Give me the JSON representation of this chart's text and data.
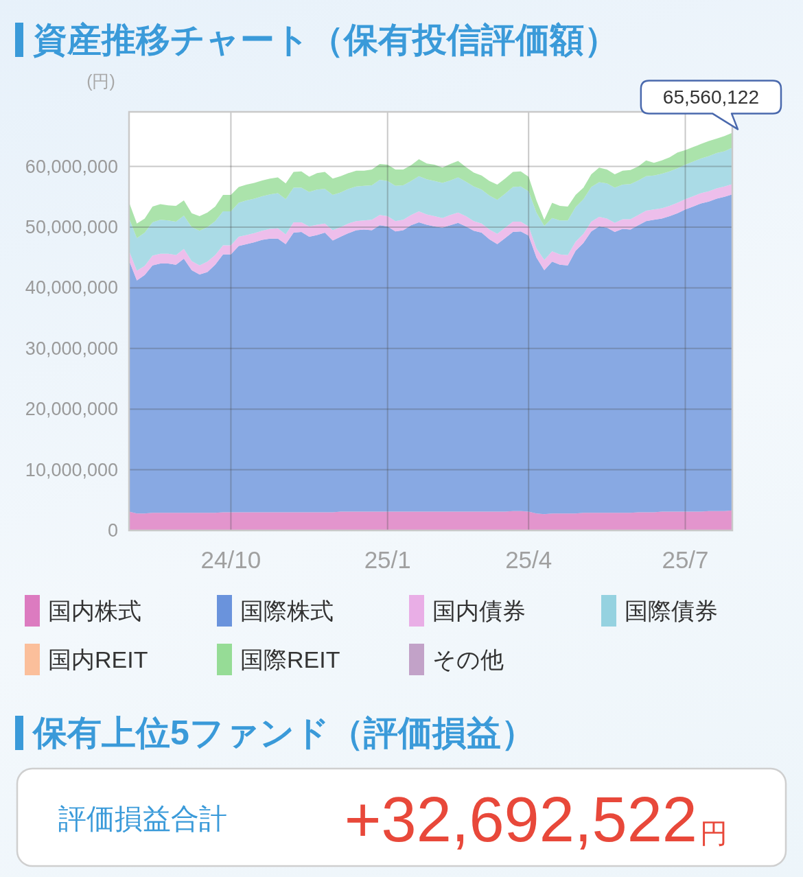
{
  "chart_data": [
    {
      "type": "area",
      "title": "資産推移チャート（保有投信評価額）",
      "ylabel": "(円)",
      "stacked": true,
      "categories": [
        null,
        null,
        null,
        null,
        null,
        null,
        null,
        null,
        null,
        null,
        null,
        null,
        null,
        "24/10",
        null,
        null,
        null,
        null,
        null,
        null,
        null,
        null,
        null,
        null,
        null,
        null,
        null,
        null,
        null,
        null,
        null,
        null,
        null,
        "25/1",
        null,
        null,
        null,
        null,
        null,
        null,
        null,
        null,
        null,
        null,
        null,
        null,
        null,
        null,
        null,
        null,
        null,
        "25/4",
        null,
        null,
        null,
        null,
        null,
        null,
        null,
        null,
        null,
        null,
        null,
        null,
        null,
        null,
        null,
        null,
        null,
        null,
        null,
        "25/7",
        null,
        null,
        null,
        null,
        null,
        null
      ],
      "series": [
        {
          "name": "国内株式",
          "color": "#dc7bc0",
          "values": [
            3100000,
            2800000,
            2800000,
            2900000,
            2900000,
            2900000,
            2900000,
            2900000,
            2900000,
            2900000,
            2900000,
            2900000,
            3000000,
            3000000,
            3000000,
            3000000,
            3000000,
            3000000,
            3000000,
            3000000,
            3000000,
            3000000,
            3000000,
            3000000,
            3000000,
            3000000,
            3000000,
            3100000,
            3100000,
            3100000,
            3100000,
            3100000,
            3100000,
            3100000,
            3100000,
            3100000,
            3100000,
            3100000,
            3100000,
            3100000,
            3100000,
            3100000,
            3100000,
            3100000,
            3100000,
            3100000,
            3100000,
            3100000,
            3100000,
            3200000,
            3200000,
            3100000,
            2800000,
            2700000,
            2800000,
            2800000,
            2800000,
            2800000,
            2900000,
            2900000,
            2900000,
            2900000,
            2900000,
            2900000,
            2900000,
            3000000,
            3000000,
            3000000,
            3100000,
            3100000,
            3100000,
            3100000,
            3100000,
            3100000,
            3200000,
            3200000,
            3200000,
            3300000
          ]
        },
        {
          "name": "国際株式",
          "color": "#6a93dc",
          "values": [
            41400000,
            38400000,
            39300000,
            40800000,
            41100000,
            41100000,
            40900000,
            41900000,
            40000000,
            39300000,
            39700000,
            40900000,
            42500000,
            42500000,
            43900000,
            44200000,
            44500000,
            44900000,
            45100000,
            45100000,
            44200000,
            46100000,
            46200000,
            45400000,
            45700000,
            46100000,
            44800000,
            45300000,
            45900000,
            46400000,
            46500000,
            46400000,
            47200000,
            47000000,
            46200000,
            46400000,
            47200000,
            47700000,
            47300000,
            47000000,
            46800000,
            47200000,
            47600000,
            47000000,
            46300000,
            46000000,
            44900000,
            44100000,
            45100000,
            46000000,
            46100000,
            45500000,
            42200000,
            40200000,
            41500000,
            41000000,
            40900000,
            43300000,
            44500000,
            46400000,
            47200000,
            47000000,
            46300000,
            46800000,
            46700000,
            47300000,
            48000000,
            48200000,
            48300000,
            48700000,
            49200000,
            49800000,
            50300000,
            50800000,
            51000000,
            51500000,
            51800000,
            52100000
          ]
        },
        {
          "name": "国内債券",
          "color": "#e9aee6",
          "values": [
            1600000,
            1600000,
            1500000,
            1600000,
            1600000,
            1600000,
            1600000,
            1600000,
            1500000,
            1500000,
            1700000,
            1600000,
            1500000,
            1500000,
            1500000,
            1500000,
            1500000,
            1500000,
            1600000,
            1700000,
            1600000,
            1700000,
            1600000,
            1700000,
            1700000,
            1500000,
            1700000,
            1600000,
            1600000,
            1500000,
            1500000,
            1700000,
            1700000,
            1700000,
            1700000,
            1700000,
            1700000,
            1800000,
            1700000,
            1700000,
            1600000,
            1700000,
            1700000,
            1700000,
            1600000,
            1500000,
            1600000,
            1700000,
            1700000,
            1700000,
            1600000,
            1500000,
            1500000,
            1700000,
            1700000,
            1700000,
            1700000,
            1500000,
            1500000,
            1600000,
            1600000,
            1500000,
            1500000,
            1600000,
            1700000,
            1700000,
            1700000,
            1700000,
            1700000,
            1700000,
            1700000,
            1700000,
            1700000,
            1700000,
            1700000,
            1700000,
            1700000,
            1700000
          ]
        },
        {
          "name": "国際債券",
          "color": "#95d2e0",
          "values": [
            5400000,
            5400000,
            5500000,
            5500000,
            5600000,
            5500000,
            5500000,
            5500000,
            5600000,
            5700000,
            5700000,
            5600000,
            5600000,
            5600000,
            5600000,
            5700000,
            5700000,
            5700000,
            5700000,
            5800000,
            5800000,
            5700000,
            5700000,
            5700000,
            5800000,
            5700000,
            5800000,
            5700000,
            5700000,
            5700000,
            5700000,
            5700000,
            5800000,
            5800000,
            5800000,
            5700000,
            5600000,
            5800000,
            5800000,
            5800000,
            5800000,
            5700000,
            5800000,
            5700000,
            5700000,
            5600000,
            5600000,
            5600000,
            5600000,
            5700000,
            5800000,
            5800000,
            5900000,
            5600000,
            5500000,
            5600000,
            5700000,
            5700000,
            5700000,
            5700000,
            5700000,
            5800000,
            5800000,
            5700000,
            5800000,
            5700000,
            5700000,
            5600000,
            5700000,
            5700000,
            5700000,
            5700000,
            5700000,
            5700000,
            5800000,
            5800000,
            5800000,
            6000000
          ]
        },
        {
          "name": "国内REIT",
          "color": "#fbbf9b",
          "values": [
            null,
            null,
            null,
            null,
            null,
            null,
            null,
            null,
            null,
            null,
            null,
            null,
            null,
            null,
            null,
            null,
            null,
            null,
            null,
            null,
            null,
            null,
            null,
            null,
            null,
            null,
            null,
            null,
            null,
            null,
            null,
            null,
            null,
            null,
            null,
            null,
            null,
            null,
            null,
            null,
            null,
            null,
            null,
            null,
            null,
            null,
            null,
            null,
            null,
            null,
            null,
            null,
            null,
            null,
            null,
            null,
            null,
            null,
            null,
            null,
            null,
            null,
            null,
            null,
            null,
            null,
            null,
            null,
            null,
            null,
            null,
            null,
            null,
            null,
            null,
            null,
            null,
            null
          ]
        },
        {
          "name": "国際REIT",
          "color": "#96dc96",
          "values": [
            2600000,
            2400000,
            2300000,
            2600000,
            2600000,
            2500000,
            2600000,
            2500000,
            2300000,
            2400000,
            2400000,
            2400000,
            2700000,
            2700000,
            2600000,
            2600000,
            2600000,
            2600000,
            2600000,
            2600000,
            2600000,
            2600000,
            2700000,
            2500000,
            2700000,
            2800000,
            2700000,
            2700000,
            2600000,
            2600000,
            2500000,
            2600000,
            2600000,
            2700000,
            2700000,
            2600000,
            2600000,
            2800000,
            2600000,
            2700000,
            2500000,
            2700000,
            2700000,
            2400000,
            2300000,
            2300000,
            2400000,
            2500000,
            2500000,
            2500000,
            2500000,
            2400000,
            2000000,
            1000000,
            2500000,
            2400000,
            2300000,
            2000000,
            1900000,
            2100000,
            2400000,
            2300000,
            2200000,
            2300000,
            2300000,
            2300000,
            2600000,
            2100000,
            2200000,
            2300000,
            2600000,
            2400000,
            2400000,
            2400000,
            2500000,
            2400000,
            2500000,
            2460122
          ]
        },
        {
          "name": "その他",
          "color": "#c2a2c8",
          "values": [
            null,
            null,
            null,
            null,
            null,
            null,
            null,
            null,
            null,
            null,
            null,
            null,
            null,
            null,
            null,
            null,
            null,
            null,
            null,
            null,
            null,
            null,
            null,
            null,
            null,
            null,
            null,
            null,
            null,
            null,
            null,
            null,
            null,
            null,
            null,
            null,
            null,
            null,
            null,
            null,
            null,
            null,
            null,
            null,
            null,
            null,
            null,
            null,
            null,
            null,
            null,
            null,
            null,
            null,
            null,
            null,
            null,
            null,
            null,
            null,
            null,
            null,
            null,
            null,
            null,
            null,
            null,
            null,
            null,
            null,
            null,
            null,
            null,
            null,
            null,
            null,
            null,
            null
          ]
        }
      ],
      "ylim": [
        0,
        69000000
      ],
      "yticks": [
        0,
        {
          "value": 10000000,
          "label": "10,000,000"
        },
        {
          "value": 20000000,
          "label": "20,000,000"
        },
        {
          "value": 30000000,
          "label": "30,000,000"
        },
        {
          "value": 40000000,
          "label": "40,000,000"
        },
        {
          "value": 50000000,
          "label": "50,000,000"
        },
        {
          "value": 60000000,
          "label": "60,000,000"
        }
      ],
      "grid": true,
      "legend": "bottom",
      "annotations": [
        "65,560,122"
      ]
    },
    {
      "type": "other",
      "title": "保有上位5ファンド（評価損益）",
      "annotations": [
        "評価損益合計",
        "+32,692,522",
        "円"
      ]
    }
  ]
}
